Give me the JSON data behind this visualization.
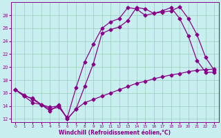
{
  "xlabel": "Windchill (Refroidissement éolien,°C)",
  "ylabel": "",
  "xlim": [
    -0.5,
    23.5
  ],
  "ylim": [
    11.5,
    30.0
  ],
  "xticks": [
    0,
    1,
    2,
    3,
    4,
    5,
    6,
    7,
    8,
    9,
    10,
    11,
    12,
    13,
    14,
    15,
    16,
    17,
    18,
    19,
    20,
    21,
    22,
    23
  ],
  "yticks": [
    12,
    14,
    16,
    18,
    20,
    22,
    24,
    26,
    28
  ],
  "bg_color": "#c8eef0",
  "line_color": "#880088",
  "grid_color": "#99ccbb",
  "line1_x": [
    0,
    1,
    2,
    3,
    4,
    5,
    6,
    7,
    8,
    9,
    10,
    11,
    12,
    13,
    14,
    15,
    16,
    17,
    18,
    19,
    20,
    21,
    22,
    23
  ],
  "line1_y": [
    16.5,
    15.7,
    15.0,
    14.2,
    13.8,
    14.0,
    12.0,
    13.5,
    17.0,
    20.5,
    25.2,
    25.8,
    26.2,
    27.2,
    29.2,
    29.0,
    28.3,
    28.5,
    28.7,
    29.3,
    27.5,
    25.0,
    21.5,
    19.5
  ],
  "line2_x": [
    0,
    1,
    2,
    3,
    4,
    5,
    6,
    7,
    8,
    9,
    10,
    11,
    12,
    13,
    14,
    15,
    16,
    17,
    18,
    19,
    20,
    21,
    22,
    23
  ],
  "line2_y": [
    16.5,
    15.5,
    15.2,
    14.2,
    13.5,
    13.8,
    12.2,
    16.8,
    20.8,
    23.5,
    26.0,
    27.0,
    27.5,
    29.2,
    29.0,
    28.0,
    28.3,
    28.7,
    29.2,
    27.5,
    24.8,
    21.0,
    19.2,
    19.2
  ],
  "line3_x": [
    0,
    1,
    2,
    3,
    4,
    5,
    6,
    7,
    8,
    9,
    10,
    11,
    12,
    13,
    14,
    15,
    16,
    17,
    18,
    19,
    20,
    21,
    22,
    23
  ],
  "line3_y": [
    16.5,
    15.5,
    14.5,
    14.2,
    13.2,
    14.2,
    12.0,
    13.5,
    14.5,
    15.0,
    15.5,
    16.0,
    16.5,
    17.0,
    17.5,
    17.8,
    18.2,
    18.5,
    18.8,
    19.0,
    19.3,
    19.5,
    19.6,
    19.7
  ],
  "marker": "D",
  "markersize": 2.5,
  "linewidth": 0.9
}
